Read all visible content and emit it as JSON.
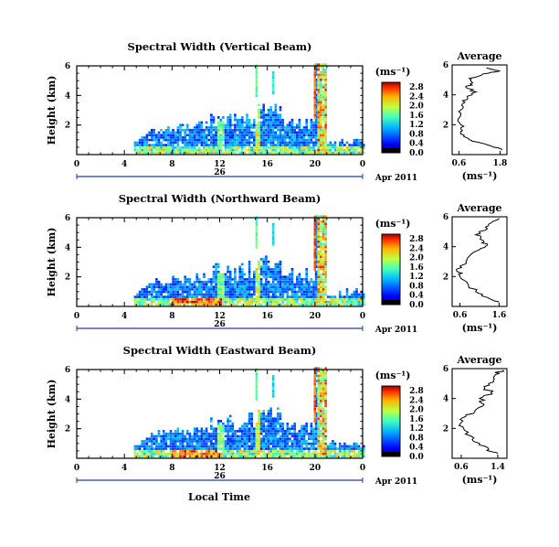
{
  "chart_data": [
    {
      "type": "heatmap",
      "title": "Spectral Width (Vertical Beam)",
      "ylabel": "Height (km)",
      "yticks": [
        "2",
        "4",
        "6"
      ],
      "ylim": [
        0,
        6
      ],
      "xticks": [
        "0",
        "4",
        "8",
        "12",
        "16",
        "20",
        "0"
      ],
      "xlim": [
        0,
        24
      ],
      "date_label": "26",
      "month_label": "Apr 2011",
      "colorbar_units": "(ms⁻¹)",
      "colorbar_ticks": [
        "0.0",
        "0.4",
        "0.8",
        "1.2",
        "1.6",
        "2.0",
        "2.4",
        "2.8"
      ],
      "colorbar_range": [
        0,
        3.0
      ],
      "average": {
        "title": "Average",
        "xlabel": "(ms⁻¹)",
        "xticks": [
          "0.6",
          "1.8"
        ],
        "xlim": [
          0.4,
          2.0
        ],
        "height_km": [
          0.3,
          0.5,
          0.8,
          1.0,
          1.3,
          1.6,
          2.0,
          2.5,
          3.0,
          3.4,
          3.8,
          4.2,
          4.5,
          4.8,
          5.1,
          5.4,
          5.6,
          5.8
        ],
        "width": [
          1.85,
          1.6,
          1.2,
          0.9,
          0.75,
          0.7,
          0.65,
          0.62,
          0.66,
          0.7,
          0.85,
          1.1,
          0.8,
          1.0,
          0.9,
          1.3,
          1.8,
          1.4
        ]
      }
    },
    {
      "type": "heatmap",
      "title": "Spectral Width (Northward Beam)",
      "ylabel": "Height (km)",
      "yticks": [
        "2",
        "4",
        "6"
      ],
      "ylim": [
        0,
        6
      ],
      "xticks": [
        "0",
        "4",
        "8",
        "12",
        "16",
        "20",
        "0"
      ],
      "xlim": [
        0,
        24
      ],
      "date_label": "26",
      "month_label": "Apr 2011",
      "colorbar_units": "(ms⁻¹)",
      "colorbar_ticks": [
        "0.0",
        "0.4",
        "0.8",
        "1.2",
        "1.6",
        "2.0",
        "2.4",
        "2.8"
      ],
      "colorbar_range": [
        0,
        3.0
      ],
      "average": {
        "title": "Average",
        "xlabel": "(ms⁻¹)",
        "xticks": [
          "0.6",
          "1.6"
        ],
        "xlim": [
          0.4,
          1.8
        ],
        "height_km": [
          0.3,
          0.6,
          1.0,
          1.5,
          2.0,
          2.3,
          2.7,
          3.0,
          3.4,
          3.8,
          4.1,
          4.4,
          4.8,
          5.2,
          5.6,
          5.9
        ],
        "width": [
          1.6,
          1.3,
          1.0,
          0.8,
          0.6,
          0.55,
          0.6,
          0.75,
          0.85,
          1.1,
          1.3,
          1.2,
          1.0,
          1.3,
          1.4,
          1.6
        ]
      }
    },
    {
      "type": "heatmap",
      "title": "Spectral Width (Eastward Beam)",
      "ylabel": "Height (km)",
      "yticks": [
        "2",
        "4",
        "6"
      ],
      "ylim": [
        0,
        6
      ],
      "xticks": [
        "0",
        "4",
        "8",
        "12",
        "16",
        "20",
        "0"
      ],
      "xlim": [
        0,
        24
      ],
      "date_label": "26",
      "month_label": "Apr 2011",
      "colorbar_units": "(ms⁻¹)",
      "colorbar_ticks": [
        "0.0",
        "0.4",
        "0.8",
        "1.2",
        "1.6",
        "2.0",
        "2.4",
        "2.8"
      ],
      "colorbar_range": [
        0,
        3.0
      ],
      "average": {
        "title": "Average",
        "xlabel": "(ms⁻¹)",
        "xticks": [
          "0.6",
          "1.4"
        ],
        "xlim": [
          0.4,
          1.6
        ],
        "height_km": [
          0.3,
          0.6,
          1.0,
          1.5,
          2.0,
          2.4,
          2.8,
          3.2,
          3.6,
          4.0,
          4.4,
          4.8,
          5.2,
          5.6,
          5.9
        ],
        "width": [
          1.4,
          1.2,
          1.0,
          0.8,
          0.65,
          0.6,
          0.7,
          0.9,
          1.1,
          1.0,
          1.25,
          1.1,
          1.3,
          1.35,
          1.5
        ]
      }
    }
  ],
  "footer": {
    "xlabel": "Local Time"
  }
}
